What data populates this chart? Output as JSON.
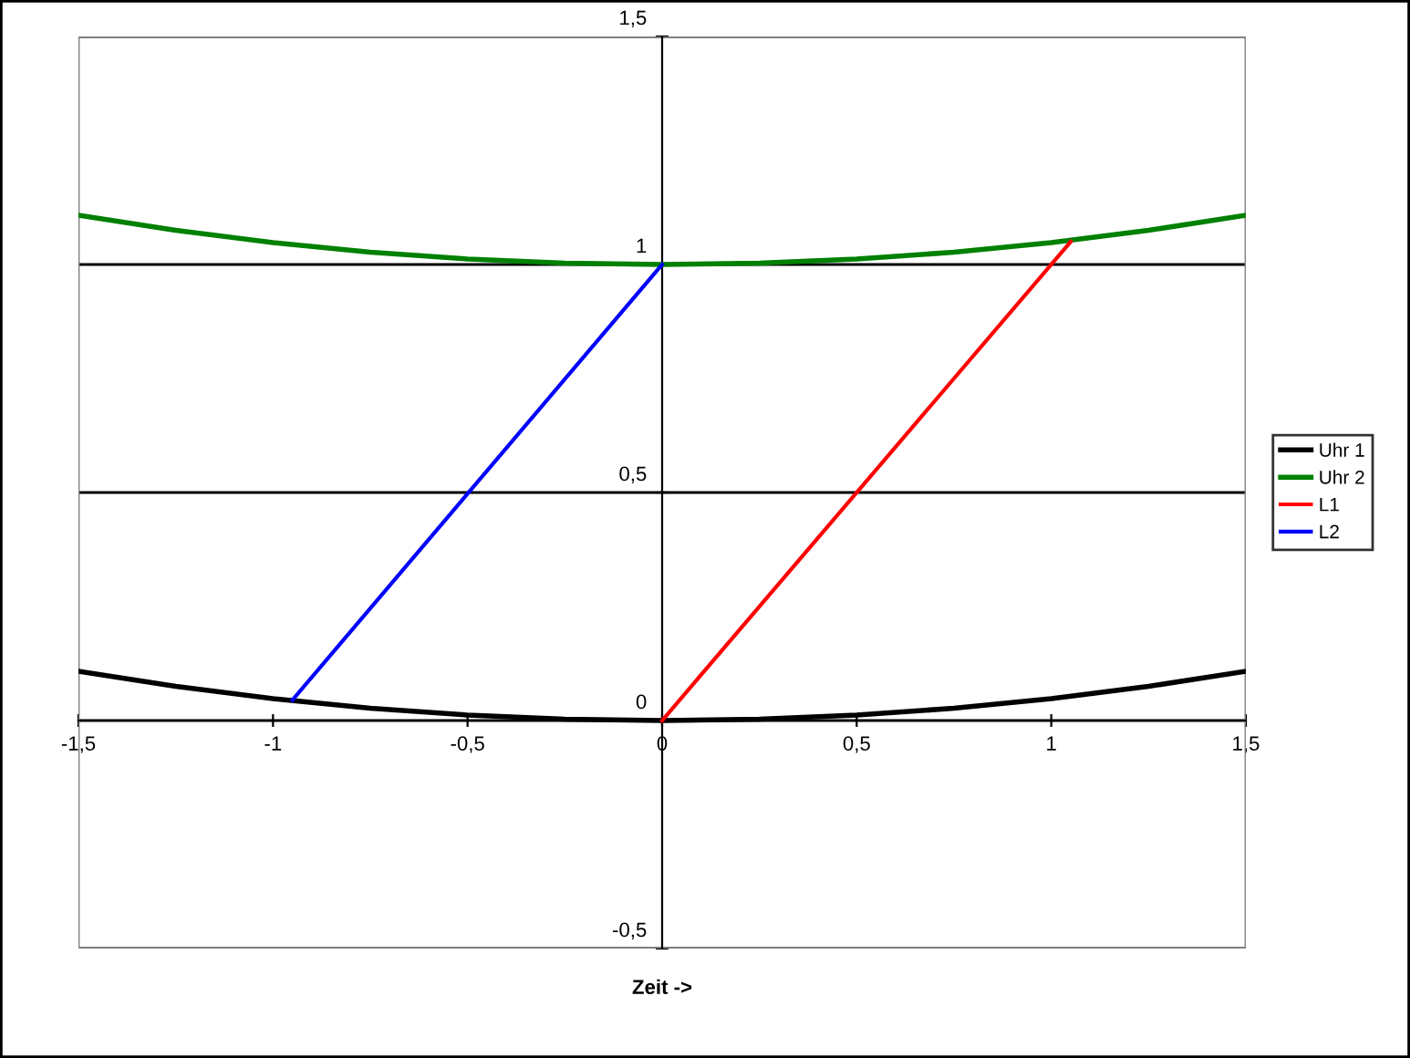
{
  "chart_data": {
    "type": "line",
    "xlabel": "Zeit ->",
    "series": [
      {
        "name": "Uhr 1",
        "color": "#000000",
        "x": [
          -1.5,
          -1.25,
          -1,
          -0.75,
          -0.5,
          -0.25,
          0,
          0.25,
          0.5,
          0.75,
          1,
          1.25,
          1.5
        ],
        "values": [
          0.108,
          0.075,
          0.048,
          0.027,
          0.012,
          0.003,
          0,
          0.003,
          0.012,
          0.027,
          0.048,
          0.075,
          0.108
        ]
      },
      {
        "name": "Uhr 2",
        "color": "#008000",
        "x": [
          -1.5,
          -1.25,
          -1,
          -0.75,
          -0.5,
          -0.25,
          0,
          0.25,
          0.5,
          0.75,
          1,
          1.25,
          1.5
        ],
        "values": [
          1.108,
          1.075,
          1.048,
          1.027,
          1.012,
          1.003,
          1,
          1.003,
          1.012,
          1.027,
          1.048,
          1.075,
          1.108
        ]
      },
      {
        "name": "L1",
        "color": "#ff0000",
        "x": [
          0,
          1.05
        ],
        "values": [
          0,
          1.05
        ]
      },
      {
        "name": "L2",
        "color": "#0000ff",
        "x": [
          -0.95,
          0
        ],
        "values": [
          0.045,
          1
        ]
      }
    ],
    "xlim": [
      -1.5,
      1.5
    ],
    "xticks": [
      {
        "value": -1.5,
        "label": "-1,5"
      },
      {
        "value": -1,
        "label": "-1"
      },
      {
        "value": -0.5,
        "label": "-0,5"
      },
      0,
      {
        "value": 0.5,
        "label": "0,5"
      },
      1,
      {
        "value": 1.5,
        "label": "1,5"
      }
    ],
    "ylim": [
      -0.5,
      1.5
    ],
    "yticks": [
      {
        "value": -0.5,
        "label": "-0,5"
      },
      0,
      {
        "value": 0.5,
        "label": "0,5"
      },
      1,
      {
        "value": 1.5,
        "label": "1,5"
      }
    ],
    "grid": "y",
    "legend": "right",
    "marker": "none",
    "line_style": "solid"
  }
}
